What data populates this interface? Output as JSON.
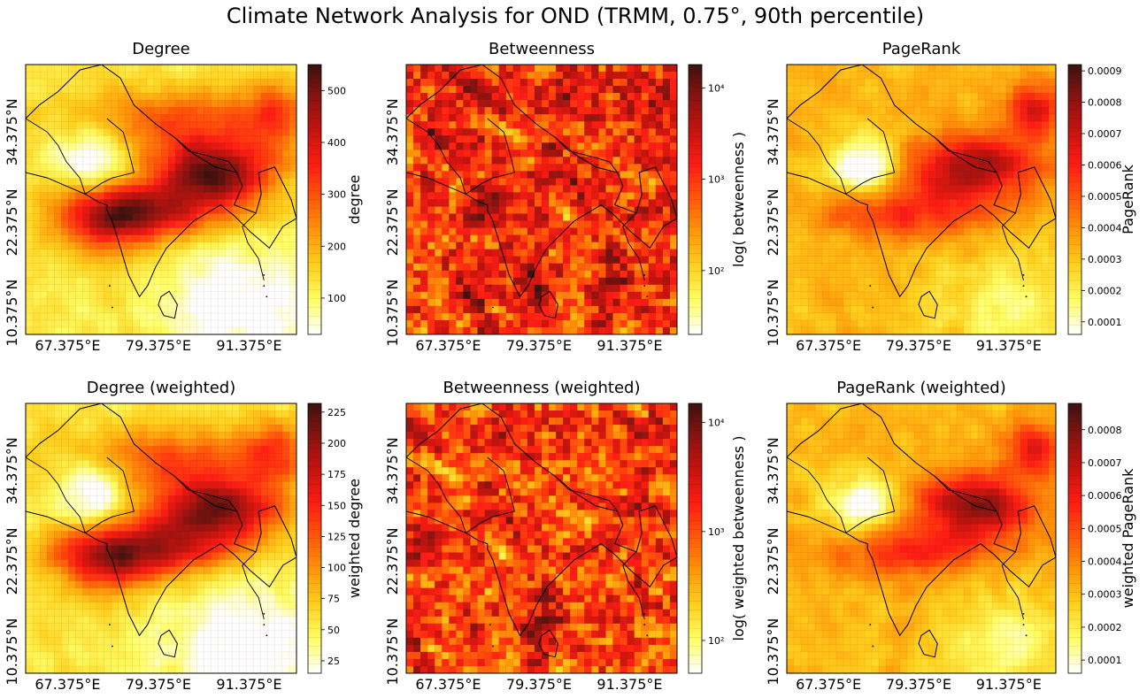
{
  "figure": {
    "title": "Climate Network Analysis for OND (TRMM, 0.75°, 90th percentile)"
  },
  "colors": {
    "colormap": [
      "#ffffff",
      "#ffff66",
      "#ffd21e",
      "#ff9a0a",
      "#ff5a0a",
      "#ff1e14",
      "#c8140f",
      "#8a1410",
      "#3c1210"
    ],
    "coastline": "#000000",
    "grid": "#7a1a10"
  },
  "chart_data": [
    {
      "type": "heatmap",
      "title": "Degree",
      "x_tick_labels": [
        "67.375°E",
        "79.375°E",
        "91.375°E"
      ],
      "y_tick_labels": [
        "10.375°N",
        "22.375°N",
        "34.375°N"
      ],
      "colorbar": {
        "label": "degree",
        "scale": "linear",
        "range": [
          30,
          550
        ],
        "ticks": [
          "100",
          "200",
          "300",
          "400",
          "500"
        ]
      }
    },
    {
      "type": "heatmap",
      "title": "Betweenness",
      "x_tick_labels": [
        "67.375°E",
        "79.375°E",
        "91.375°E"
      ],
      "y_tick_labels": [
        "10.375°N",
        "22.375°N",
        "34.375°N"
      ],
      "colorbar": {
        "label": "log( betweenness )",
        "scale": "log",
        "range": [
          20,
          18000
        ],
        "ticks": [
          "10²",
          "10³",
          "10⁴"
        ]
      }
    },
    {
      "type": "heatmap",
      "title": "PageRank",
      "x_tick_labels": [
        "67.375°E",
        "79.375°E",
        "91.375°E"
      ],
      "y_tick_labels": [
        "10.375°N",
        "22.375°N",
        "34.375°N"
      ],
      "colorbar": {
        "label": "PageRank",
        "scale": "linear",
        "range": [
          6e-05,
          0.00092
        ],
        "ticks": [
          "0.0001",
          "0.0002",
          "0.0003",
          "0.0004",
          "0.0005",
          "0.0006",
          "0.0007",
          "0.0008",
          "0.0009"
        ]
      }
    },
    {
      "type": "heatmap",
      "title": "Degree (weighted)",
      "x_tick_labels": [
        "67.375°E",
        "79.375°E",
        "91.375°E"
      ],
      "y_tick_labels": [
        "10.375°N",
        "22.375°N",
        "34.375°N"
      ],
      "colorbar": {
        "label": "weighted degree",
        "scale": "linear",
        "range": [
          15,
          232
        ],
        "ticks": [
          "25",
          "50",
          "75",
          "100",
          "125",
          "150",
          "175",
          "200",
          "225"
        ]
      }
    },
    {
      "type": "heatmap",
      "title": "Betweenness (weighted)",
      "x_tick_labels": [
        "67.375°E",
        "79.375°E",
        "91.375°E"
      ],
      "y_tick_labels": [
        "10.375°N",
        "22.375°N",
        "34.375°N"
      ],
      "colorbar": {
        "label": "log( weighted betweenness )",
        "scale": "log",
        "range": [
          50,
          15000
        ],
        "ticks": [
          "10²",
          "10³",
          "10⁴"
        ]
      }
    },
    {
      "type": "heatmap",
      "title": "PageRank (weighted)",
      "x_tick_labels": [
        "67.375°E",
        "79.375°E",
        "91.375°E"
      ],
      "y_tick_labels": [
        "10.375°N",
        "22.375°N",
        "34.375°N"
      ],
      "colorbar": {
        "label": "weighted PageRank",
        "scale": "linear",
        "range": [
          6e-05,
          0.00088
        ],
        "ticks": [
          "0.0001",
          "0.0002",
          "0.0003",
          "0.0004",
          "0.0005",
          "0.0006",
          "0.0007",
          "0.0008"
        ]
      }
    }
  ]
}
